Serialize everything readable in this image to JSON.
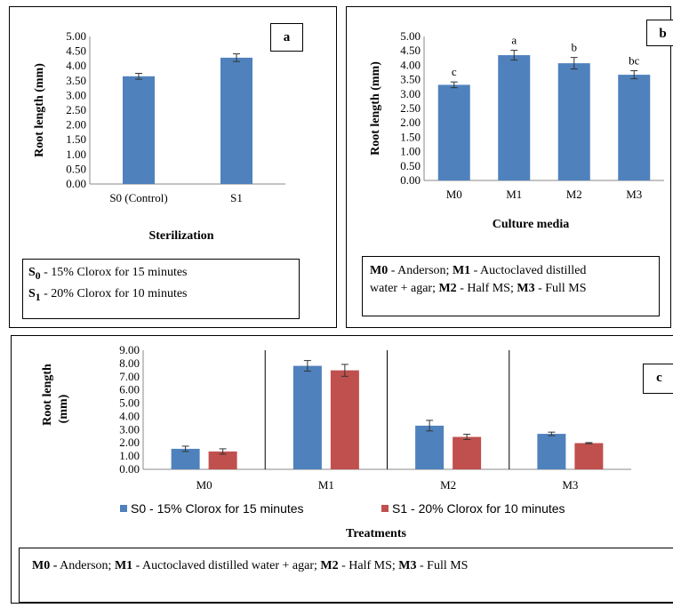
{
  "panels": {
    "a": {
      "tag": "a",
      "legend": [
        {
          "sym": "S",
          "sub": "0",
          "text": " - 15% Clorox for 15 minutes"
        },
        {
          "sym": "S",
          "sub": "1",
          "text": " - 20% Clorox for 10 minutes"
        }
      ]
    },
    "b": {
      "tag": "b",
      "legend_lines": [
        [
          {
            "b": true,
            "t": "M0"
          },
          {
            "b": false,
            "t": " - Anderson; "
          },
          {
            "b": true,
            "t": "M1"
          },
          {
            "b": false,
            "t": " - Auctoclaved distilled"
          }
        ],
        [
          {
            "b": false,
            "t": "water + agar; "
          },
          {
            "b": true,
            "t": "M2"
          },
          {
            "b": false,
            "t": " - Half MS; "
          },
          {
            "b": true,
            "t": "M3"
          },
          {
            "b": false,
            "t": " - Full MS"
          }
        ]
      ]
    },
    "c": {
      "tag": "c",
      "legend_lines": [
        [
          {
            "b": true,
            "t": "M0 -"
          },
          {
            "b": false,
            "t": " Anderson; "
          },
          {
            "b": true,
            "t": "M1"
          },
          {
            "b": false,
            "t": " - Auctoclaved distilled water + agar; "
          },
          {
            "b": true,
            "t": "M2"
          },
          {
            "b": false,
            "t": " - Half MS; "
          },
          {
            "b": true,
            "t": "M3"
          },
          {
            "b": false,
            "t": " - Full MS"
          }
        ]
      ]
    }
  },
  "colors": {
    "blue": "#4F81BD",
    "red": "#C0504D"
  },
  "chart_data": [
    {
      "type": "bar",
      "categories": [
        "S0 (Control)",
        "S1"
      ],
      "values": [
        3.65,
        4.28
      ],
      "errors": [
        0.1,
        0.13
      ],
      "xlabel": "Sterilization",
      "ylabel": "Root length (mm)",
      "ylim": [
        0,
        5
      ],
      "yticks": [
        "0.00",
        "0.50",
        "1.00",
        "1.50",
        "2.00",
        "2.50",
        "3.00",
        "3.50",
        "4.00",
        "4.50",
        "5.00"
      ],
      "grid": false
    },
    {
      "type": "bar",
      "categories": [
        "M0",
        "M1",
        "M2",
        "M3"
      ],
      "values": [
        3.32,
        4.35,
        4.07,
        3.67
      ],
      "errors": [
        0.1,
        0.17,
        0.2,
        0.14
      ],
      "labels": [
        "c",
        "a",
        "b",
        "bc"
      ],
      "xlabel": "Culture media",
      "ylabel": "Root length (mm)",
      "ylim": [
        0,
        5
      ],
      "yticks": [
        "0.00",
        "0.50",
        "1.00",
        "1.50",
        "2.00",
        "2.50",
        "3.00",
        "3.50",
        "4.00",
        "4.50",
        "5.00"
      ],
      "grid": false
    },
    {
      "type": "bar",
      "categories": [
        "M0",
        "M1",
        "M2",
        "M3"
      ],
      "series": [
        {
          "name": "S0 - 15% Clorox for 15 minutes",
          "values": [
            1.55,
            7.82,
            3.3,
            2.68
          ],
          "errors": [
            0.2,
            0.4,
            0.4,
            0.13
          ]
        },
        {
          "name": "S1 - 20% Clorox for 10 minutes",
          "values": [
            1.35,
            7.48,
            2.45,
            1.98
          ],
          "errors": [
            0.2,
            0.45,
            0.2,
            0.04
          ]
        }
      ],
      "xlabel": "Treatments",
      "ylabel": "Root length (mm)",
      "ylim": [
        0,
        9
      ],
      "yticks": [
        "0.00",
        "1.00",
        "2.00",
        "3.00",
        "4.00",
        "5.00",
        "6.00",
        "7.00",
        "8.00",
        "9.00"
      ],
      "grid": false,
      "legend": "bottom"
    }
  ]
}
